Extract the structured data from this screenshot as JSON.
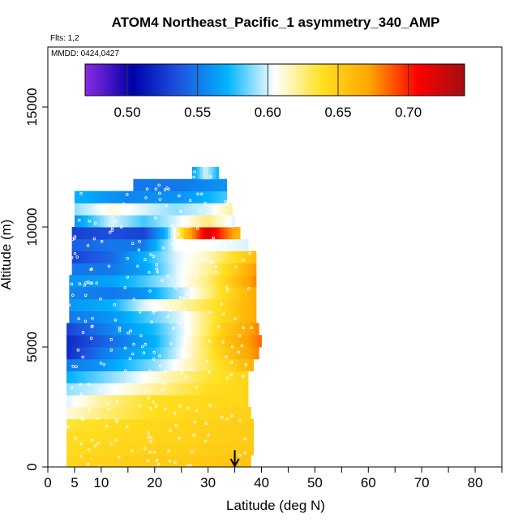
{
  "chart_data": {
    "type": "heatmap",
    "title": "ATOM4 Northeast_Pacific_1 asymmetry_340_AMP",
    "flights_label": "Flts: 1,2",
    "date_label": "MMDD: 0424,0427",
    "xlabel": "Latitude (deg N)",
    "ylabel": "Altitude (m)",
    "xlim": [
      0,
      85
    ],
    "ylim": [
      0,
      17500
    ],
    "x_ticks": [
      0,
      5,
      10,
      20,
      30,
      40,
      50,
      60,
      70,
      80
    ],
    "x_minor_ticks": [
      15,
      25,
      35,
      45,
      55,
      65,
      75,
      85
    ],
    "y_ticks": [
      0,
      5000,
      10000,
      15000
    ],
    "colorbar": {
      "range": [
        0.47,
        0.74
      ],
      "ticks": [
        0.5,
        0.55,
        0.6,
        0.65,
        0.7
      ],
      "tick_labels": [
        "0.50",
        "0.55",
        "0.60",
        "0.65",
        "0.70"
      ],
      "colors": [
        "#8a2be2",
        "#0000aa",
        "#1e55e0",
        "#00b4ff",
        "#ffffff",
        "#ffe020",
        "#ffa500",
        "#ff0000",
        "#a01010"
      ]
    },
    "annotation": "Arrow marker at latitude 35 deg N near the surface",
    "arrow_latitude": 35,
    "layers": [
      {
        "z0": 0,
        "z1": 500,
        "x0": 3.5,
        "x1": 38,
        "profile": [
          [
            3.5,
            0.645
          ],
          [
            38,
            0.655
          ]
        ]
      },
      {
        "z0": 500,
        "z1": 1000,
        "x0": 3.5,
        "x1": 38.5,
        "profile": [
          [
            3.5,
            0.642
          ],
          [
            38.5,
            0.652
          ]
        ]
      },
      {
        "z0": 1000,
        "z1": 1500,
        "x0": 3.5,
        "x1": 38.5,
        "profile": [
          [
            3.5,
            0.64
          ],
          [
            38.5,
            0.65
          ]
        ]
      },
      {
        "z0": 1500,
        "z1": 2000,
        "x0": 3.5,
        "x1": 38.5,
        "profile": [
          [
            3.5,
            0.635
          ],
          [
            15,
            0.642
          ],
          [
            38.5,
            0.65
          ]
        ]
      },
      {
        "z0": 2000,
        "z1": 2500,
        "x0": 3.5,
        "x1": 38,
        "profile": [
          [
            3.5,
            0.61
          ],
          [
            10,
            0.625
          ],
          [
            20,
            0.64
          ],
          [
            38,
            0.648
          ]
        ]
      },
      {
        "z0": 2500,
        "z1": 3000,
        "x0": 3.5,
        "x1": 37.5,
        "profile": [
          [
            3.5,
            0.6
          ],
          [
            10,
            0.62
          ],
          [
            20,
            0.64
          ],
          [
            37.5,
            0.645
          ]
        ]
      },
      {
        "z0": 3000,
        "z1": 3500,
        "x0": 3.5,
        "x1": 37.5,
        "profile": [
          [
            3.5,
            0.59
          ],
          [
            10,
            0.6
          ],
          [
            20,
            0.62
          ],
          [
            30,
            0.64
          ],
          [
            37.5,
            0.645
          ]
        ]
      },
      {
        "z0": 3500,
        "z1": 4000,
        "x0": 3.5,
        "x1": 37.5,
        "profile": [
          [
            3.5,
            0.57
          ],
          [
            10,
            0.585
          ],
          [
            20,
            0.61
          ],
          [
            30,
            0.635
          ],
          [
            37.5,
            0.645
          ]
        ]
      },
      {
        "z0": 4000,
        "z1": 4500,
        "x0": 3.5,
        "x1": 38.5,
        "profile": [
          [
            3.5,
            0.55
          ],
          [
            10,
            0.56
          ],
          [
            20,
            0.59
          ],
          [
            30,
            0.63
          ],
          [
            38.5,
            0.665
          ]
        ]
      },
      {
        "z0": 4500,
        "z1": 5000,
        "x0": 3.5,
        "x1": 39.5,
        "profile": [
          [
            3.5,
            0.52
          ],
          [
            10,
            0.55
          ],
          [
            20,
            0.575
          ],
          [
            28,
            0.62
          ],
          [
            33,
            0.65
          ],
          [
            39.5,
            0.68
          ]
        ]
      },
      {
        "z0": 5000,
        "z1": 5500,
        "x0": 3.5,
        "x1": 40,
        "profile": [
          [
            3.5,
            0.52
          ],
          [
            10,
            0.54
          ],
          [
            20,
            0.57
          ],
          [
            28,
            0.62
          ],
          [
            33,
            0.655
          ],
          [
            40,
            0.685
          ]
        ]
      },
      {
        "z0": 5500,
        "z1": 6000,
        "x0": 3.5,
        "x1": 39.5,
        "profile": [
          [
            3.5,
            0.53
          ],
          [
            10,
            0.55
          ],
          [
            20,
            0.575
          ],
          [
            27,
            0.61
          ],
          [
            33,
            0.65
          ],
          [
            39.5,
            0.68
          ]
        ]
      },
      {
        "z0": 6000,
        "z1": 6500,
        "x0": 4,
        "x1": 39,
        "profile": [
          [
            4,
            0.55
          ],
          [
            12,
            0.56
          ],
          [
            20,
            0.585
          ],
          [
            26,
            0.605
          ],
          [
            32,
            0.64
          ],
          [
            39,
            0.67
          ]
        ]
      },
      {
        "z0": 6500,
        "z1": 7000,
        "x0": 4,
        "x1": 39,
        "profile": [
          [
            4,
            0.56
          ],
          [
            12,
            0.57
          ],
          [
            18,
            0.6
          ],
          [
            26,
            0.62
          ],
          [
            32,
            0.64
          ],
          [
            39,
            0.67
          ]
        ]
      },
      {
        "z0": 7000,
        "z1": 7500,
        "x0": 4,
        "x1": 39,
        "profile": [
          [
            4,
            0.555
          ],
          [
            12,
            0.55
          ],
          [
            18,
            0.56
          ],
          [
            26,
            0.6
          ],
          [
            32,
            0.635
          ],
          [
            39,
            0.67
          ]
        ]
      },
      {
        "z0": 7500,
        "z1": 8000,
        "x0": 4,
        "x1": 39,
        "profile": [
          [
            4,
            0.56
          ],
          [
            12,
            0.565
          ],
          [
            18,
            0.58
          ],
          [
            24,
            0.6
          ],
          [
            30,
            0.625
          ],
          [
            39,
            0.68
          ]
        ]
      },
      {
        "z0": 8000,
        "z1": 8500,
        "x0": 4.5,
        "x1": 39,
        "profile": [
          [
            4.5,
            0.55
          ],
          [
            12,
            0.55
          ],
          [
            18,
            0.565
          ],
          [
            24,
            0.6
          ],
          [
            30,
            0.62
          ],
          [
            39,
            0.675
          ]
        ]
      },
      {
        "z0": 8500,
        "z1": 9000,
        "x0": 4.5,
        "x1": 39,
        "profile": [
          [
            4.5,
            0.53
          ],
          [
            12,
            0.545
          ],
          [
            18,
            0.57
          ],
          [
            24,
            0.6
          ],
          [
            30,
            0.615
          ],
          [
            39,
            0.66
          ]
        ]
      },
      {
        "z0": 9000,
        "z1": 9500,
        "x0": 4.5,
        "x1": 37.5,
        "profile": [
          [
            4.5,
            0.54
          ],
          [
            12,
            0.55
          ],
          [
            18,
            0.55
          ],
          [
            24,
            0.605
          ],
          [
            30,
            0.605
          ],
          [
            37.5,
            0.6
          ]
        ]
      },
      {
        "z0": 9500,
        "z1": 10000,
        "x0": 4.5,
        "x1": 36,
        "profile": [
          [
            4.5,
            0.53
          ],
          [
            12,
            0.535
          ],
          [
            18,
            0.53
          ],
          [
            22,
            0.57
          ],
          [
            26,
            0.66
          ],
          [
            30,
            0.72
          ],
          [
            36,
            0.66
          ]
        ]
      },
      {
        "z0": 10000,
        "z1": 10500,
        "x0": 5,
        "x1": 35,
        "profile": [
          [
            5,
            0.56
          ],
          [
            12,
            0.6
          ],
          [
            18,
            0.58
          ],
          [
            24,
            0.6
          ],
          [
            30,
            0.625
          ],
          [
            35,
            0.6
          ]
        ]
      },
      {
        "z0": 10500,
        "z1": 11000,
        "x0": 5,
        "x1": 34.5,
        "profile": [
          [
            5,
            0.59
          ],
          [
            12,
            0.61
          ],
          [
            18,
            0.6
          ],
          [
            24,
            0.59
          ],
          [
            30,
            0.6
          ],
          [
            34.5,
            0.62
          ]
        ]
      },
      {
        "z0": 11000,
        "z1": 11500,
        "x0": 5,
        "x1": 33.5,
        "profile": [
          [
            5,
            0.57
          ],
          [
            15,
            0.555
          ],
          [
            25,
            0.56
          ],
          [
            33.5,
            0.58
          ]
        ]
      },
      {
        "z0": 11500,
        "z1": 12000,
        "x0": 16,
        "x1": 33.5,
        "profile": [
          [
            16,
            0.55
          ],
          [
            25,
            0.55
          ],
          [
            33.5,
            0.56
          ]
        ]
      },
      {
        "z0": 12000,
        "z1": 12500,
        "x0": 27,
        "x1": 32,
        "profile": [
          [
            27,
            0.56
          ],
          [
            29.5,
            0.6
          ],
          [
            32,
            0.57
          ]
        ]
      }
    ]
  }
}
